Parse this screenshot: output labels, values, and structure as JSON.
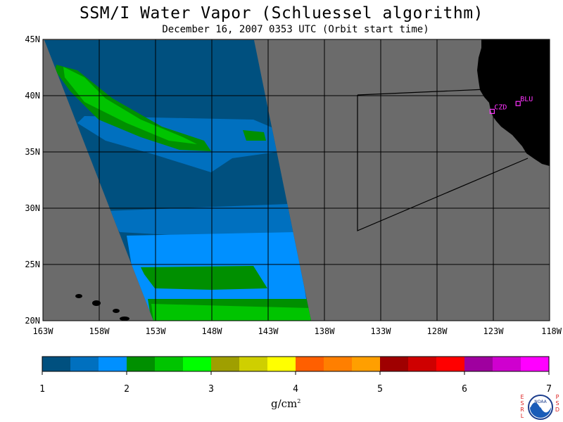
{
  "title": "SSM/I Water Vapor (Schluessel algorithm)",
  "subtitle": "December 16, 2007  0353 UTC  (Orbit start time)",
  "map": {
    "lon_range": [
      -163,
      -118
    ],
    "lat_range": [
      20,
      45
    ],
    "lat_labels": [
      "45N",
      "40N",
      "35N",
      "30N",
      "25N",
      "20N"
    ],
    "lon_labels": [
      "163W",
      "158W",
      "153W",
      "148W",
      "143W",
      "138W",
      "133W",
      "128W",
      "123W",
      "118W"
    ],
    "colors": {
      "no_data": "#6b6b6b",
      "land": "#000000",
      "grid": "#000000",
      "station": "#ff33ff"
    },
    "stations": [
      {
        "label": "CZD",
        "lon": -123.1,
        "lat": 38.6
      },
      {
        "label": "BLU",
        "lon": -120.8,
        "lat": 39.3
      }
    ],
    "swath_bands": [
      {
        "lat_top": 45,
        "lat_bottom": 38.5,
        "level": "1.0-1.33"
      },
      {
        "lat_top": 42.5,
        "lat_bottom": 35.5,
        "level": "2.0-2.33"
      },
      {
        "lat_top": 36,
        "lat_bottom": 33,
        "level": "1.33-1.66"
      },
      {
        "lat_top": 33,
        "lat_bottom": 28.5,
        "level": "1.0-1.33"
      },
      {
        "lat_top": 28.5,
        "lat_bottom": 25,
        "level": "1.33-1.66"
      },
      {
        "lat_top": 25,
        "lat_bottom": 20,
        "level": "1.66-2.0"
      },
      {
        "lat_top": 24.5,
        "lat_bottom": 23,
        "level": "2.0-2.33"
      },
      {
        "lat_top": 21.5,
        "lat_bottom": 20,
        "level": "2.33-2.66"
      }
    ]
  },
  "colorbar": {
    "ticks": [
      "1",
      "2",
      "3",
      "4",
      "5",
      "6",
      "7"
    ],
    "colors": [
      "#00507f",
      "#0070bf",
      "#0090ff",
      "#008f00",
      "#00c400",
      "#00ff00",
      "#9f9f00",
      "#cfcf00",
      "#ffff00",
      "#ff5f00",
      "#ff7f00",
      "#ff9f00",
      "#9f0000",
      "#cf0000",
      "#ff0000",
      "#9f009f",
      "#cf00cf",
      "#ff00ff"
    ],
    "units_base": "g/cm",
    "units_exp": "2"
  },
  "logo": {
    "left_letters": "ESRL",
    "right_letters": "PSD",
    "center_text": "NOAA"
  }
}
